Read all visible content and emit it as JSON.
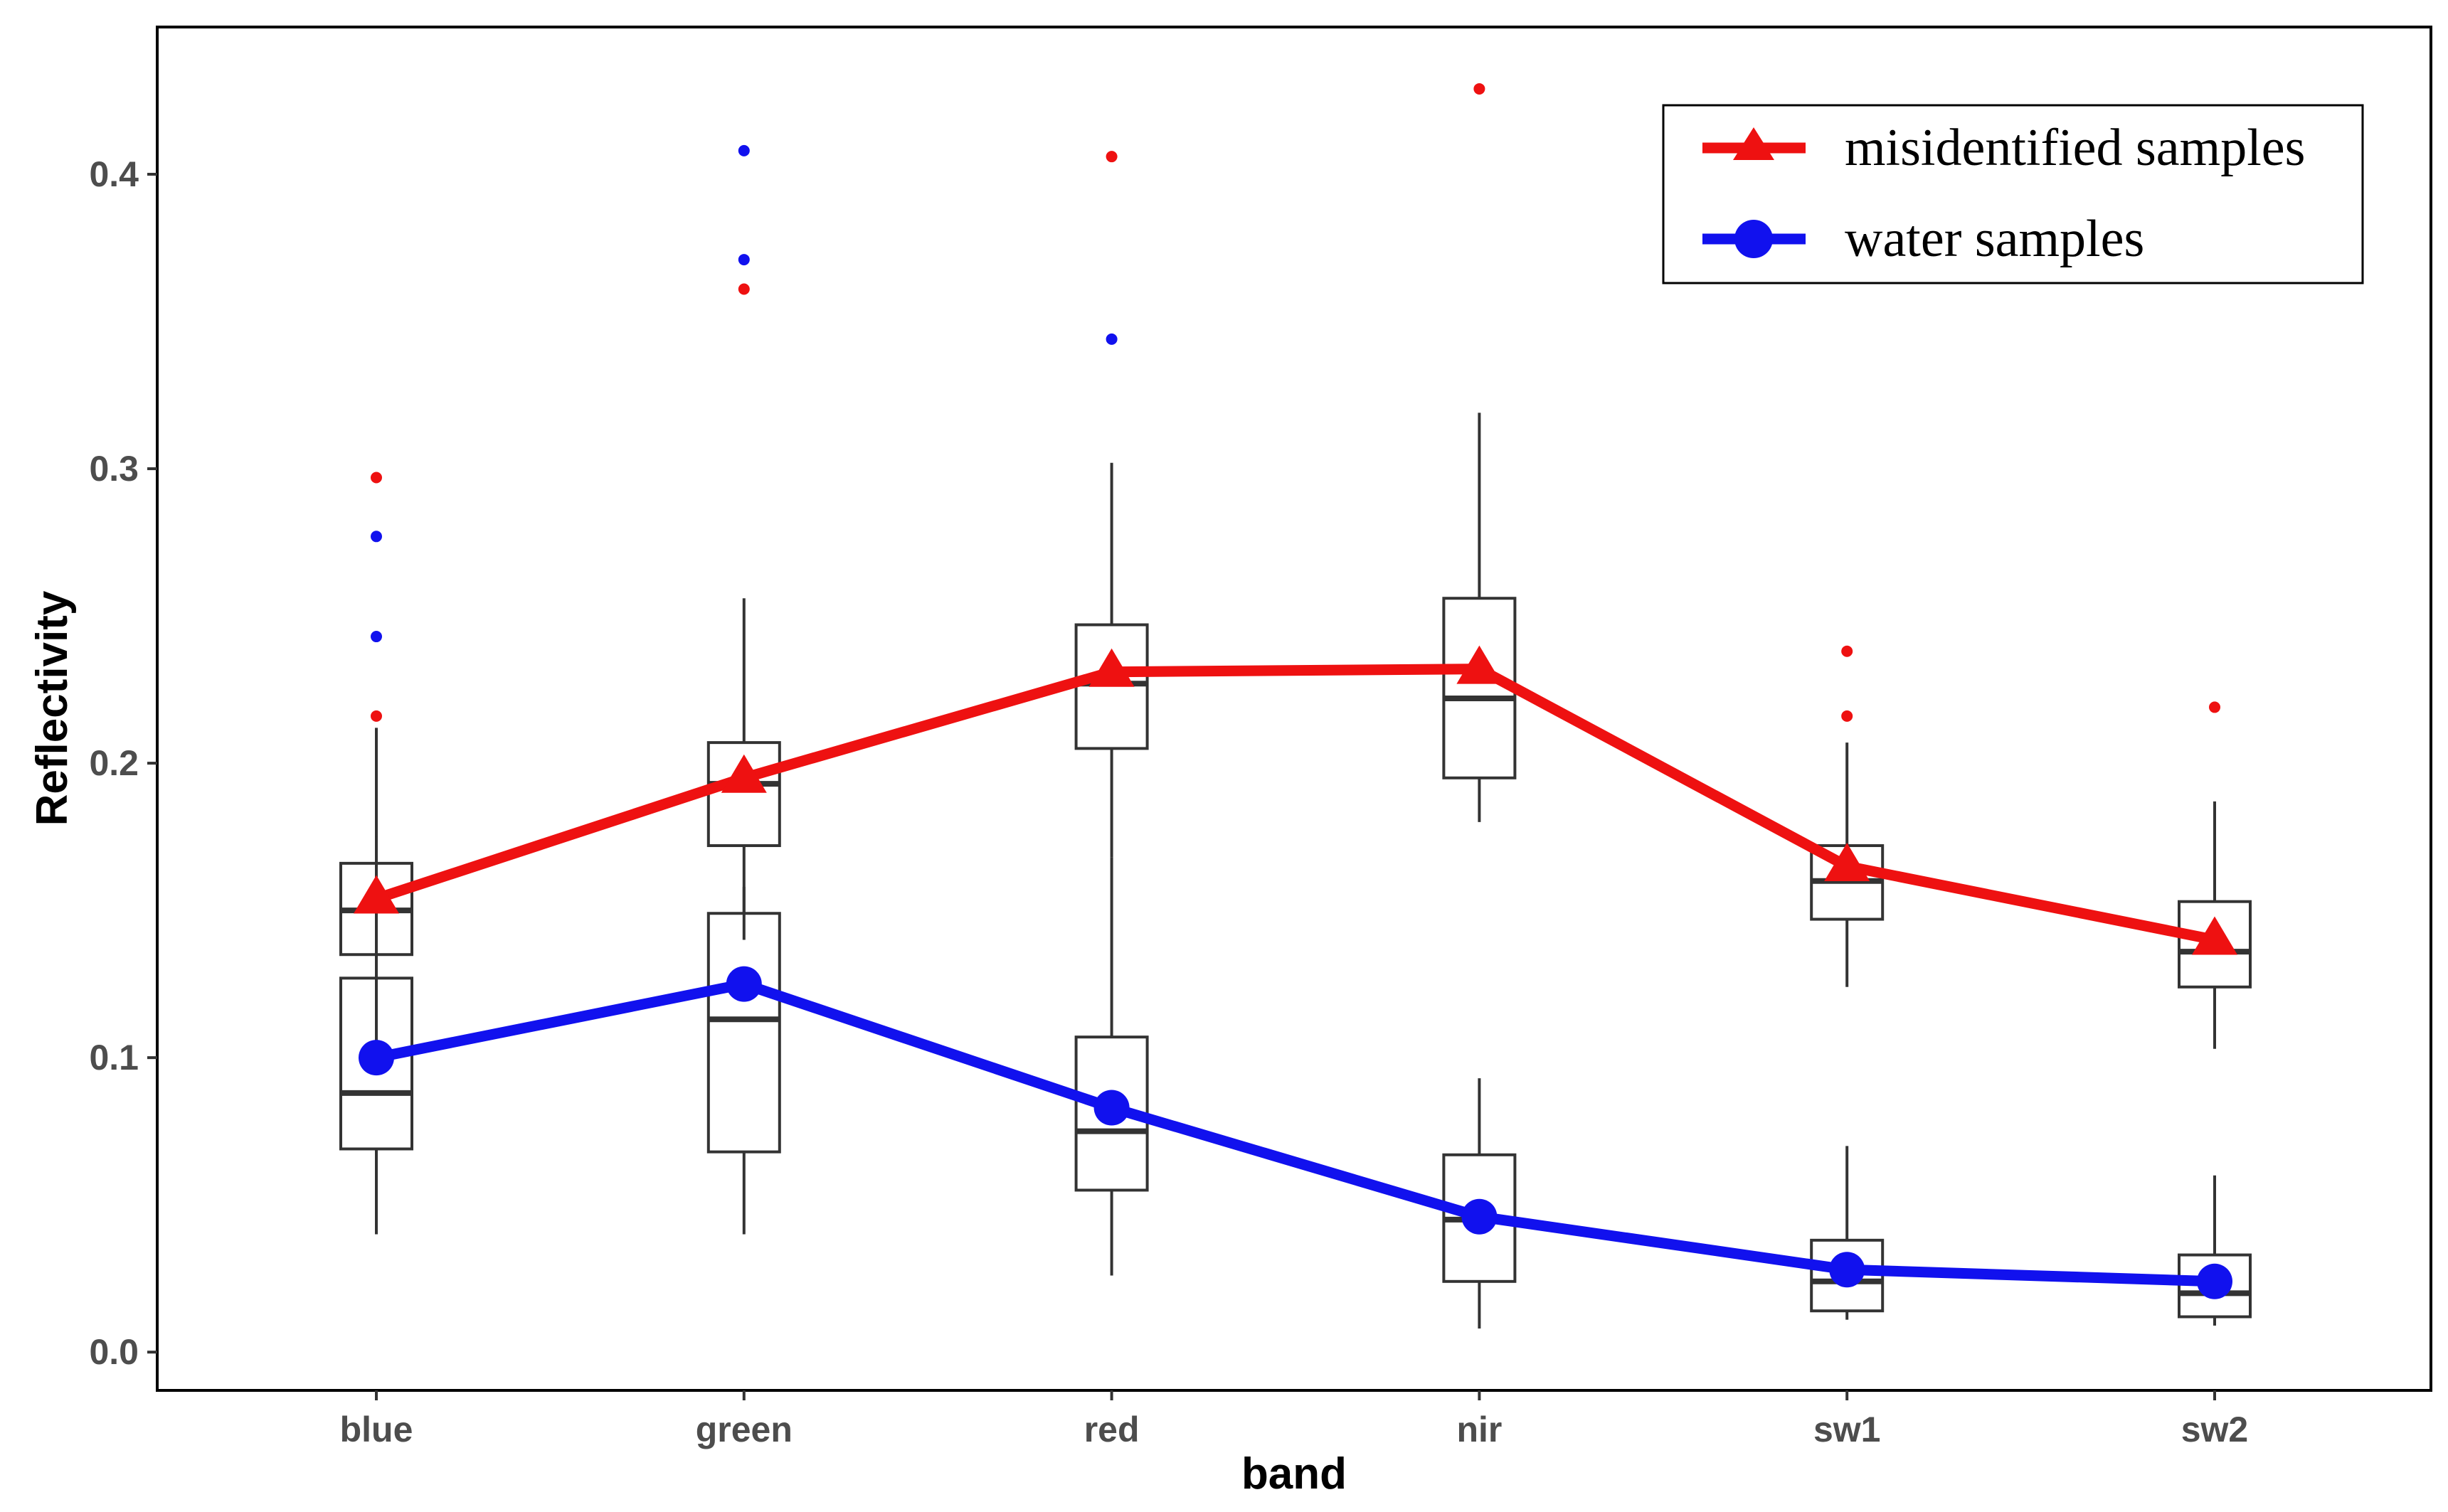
{
  "chart_data": {
    "type": "line",
    "title": "",
    "xlabel": "band",
    "ylabel": "Reflectivity",
    "categories": [
      "blue",
      "green",
      "red",
      "nir",
      "sw1",
      "sw2"
    ],
    "ylim": [
      -0.013,
      0.45
    ],
    "yticks": [
      0.0,
      0.1,
      0.2,
      0.3,
      0.4
    ],
    "ytick_labels": [
      "0.0",
      "0.1",
      "0.2",
      "0.3",
      "0.4"
    ],
    "grid": false,
    "legend_position": "top-right",
    "series": [
      {
        "name": "misidentified samples",
        "color": "#ee1111",
        "marker": "triangle",
        "values": [
          0.154,
          0.195,
          0.231,
          0.232,
          0.165,
          0.14
        ],
        "boxplots": [
          {
            "min": 0.1,
            "q1": 0.135,
            "median": 0.15,
            "q3": 0.166,
            "max": 0.212,
            "outliers": [
              0.216,
              0.297
            ]
          },
          {
            "min": 0.14,
            "q1": 0.172,
            "median": 0.193,
            "q3": 0.207,
            "max": 0.256,
            "outliers": [
              0.361
            ]
          },
          {
            "min": 0.168,
            "q1": 0.205,
            "median": 0.227,
            "q3": 0.247,
            "max": 0.302,
            "outliers": [
              0.406
            ]
          },
          {
            "min": 0.18,
            "q1": 0.195,
            "median": 0.222,
            "q3": 0.256,
            "max": 0.319,
            "outliers": [
              0.429
            ]
          },
          {
            "min": 0.124,
            "q1": 0.147,
            "median": 0.16,
            "q3": 0.172,
            "max": 0.207,
            "outliers": [
              0.216,
              0.238
            ]
          },
          {
            "min": 0.103,
            "q1": 0.124,
            "median": 0.136,
            "q3": 0.153,
            "max": 0.187,
            "outliers": [
              0.219
            ]
          }
        ]
      },
      {
        "name": "water samples",
        "color": "#1111ee",
        "marker": "circle",
        "values": [
          0.1,
          0.125,
          0.083,
          0.046,
          0.028,
          0.024
        ],
        "boxplots": [
          {
            "min": 0.04,
            "q1": 0.069,
            "median": 0.088,
            "q3": 0.127,
            "max": 0.175,
            "outliers": [
              0.243,
              0.277
            ]
          },
          {
            "min": 0.04,
            "q1": 0.068,
            "median": 0.113,
            "q3": 0.149,
            "max": 0.158,
            "outliers": [
              0.371,
              0.408
            ]
          },
          {
            "min": 0.026,
            "q1": 0.055,
            "median": 0.075,
            "q3": 0.107,
            "max": 0.168,
            "outliers": [
              0.344
            ]
          },
          {
            "min": 0.008,
            "q1": 0.024,
            "median": 0.045,
            "q3": 0.067,
            "max": 0.093,
            "outliers": []
          },
          {
            "min": 0.011,
            "q1": 0.014,
            "median": 0.024,
            "q3": 0.038,
            "max": 0.07,
            "outliers": []
          },
          {
            "min": 0.009,
            "q1": 0.012,
            "median": 0.02,
            "q3": 0.033,
            "max": 0.06,
            "outliers": []
          }
        ]
      }
    ]
  }
}
